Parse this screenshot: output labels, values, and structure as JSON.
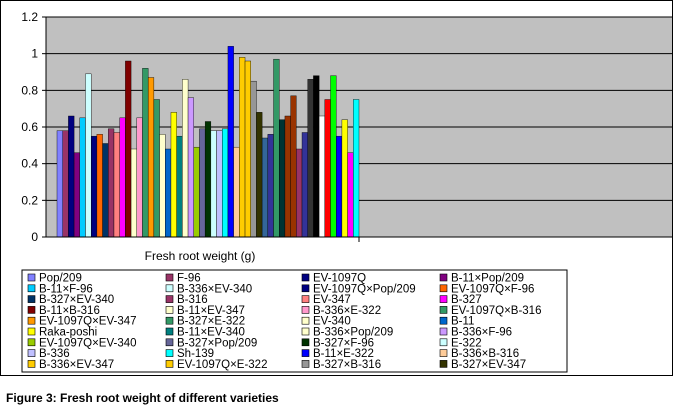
{
  "chart_data": {
    "type": "bar",
    "title": "",
    "xlabel": "Fresh root weight (g)",
    "ylabel": "",
    "ylim": [
      0,
      1.2
    ],
    "yticks": [
      "0",
      "0.2",
      "0.4",
      "0.6",
      "0.8",
      "1",
      "1.2"
    ],
    "grid": true,
    "legend_position": "bottom",
    "series": [
      {
        "name": "Pop/209",
        "color": "#8080ff",
        "value": 0.58
      },
      {
        "name": "F-96",
        "color": "#993366",
        "value": 0.58
      },
      {
        "name": "EV-1097Q",
        "color": "#000080",
        "value": 0.66
      },
      {
        "name": "B-11×Pop/209",
        "color": "#800080",
        "value": 0.46
      },
      {
        "name": "B-11×F-96",
        "color": "#00ccff",
        "value": 0.65
      },
      {
        "name": "B-336×EV-340",
        "color": "#ccffff",
        "value": 0.89
      },
      {
        "name": "EV-1097Q×Pop/209",
        "color": "#000080",
        "value": 0.55
      },
      {
        "name": "EV-1097Q×F-96",
        "color": "#ff6600",
        "value": 0.56
      },
      {
        "name": "B-327×EV-340",
        "color": "#003366",
        "value": 0.51
      },
      {
        "name": "B-316",
        "color": "#993366",
        "value": 0.59
      },
      {
        "name": "EV-347",
        "color": "#ff8080",
        "value": 0.57
      },
      {
        "name": "B-327",
        "color": "#ff00ff",
        "value": 0.65
      },
      {
        "name": "B-11×B-316",
        "color": "#800000",
        "value": 0.96
      },
      {
        "name": "B-11×EV-347",
        "color": "#ffffcc",
        "value": 0.48
      },
      {
        "name": "B-336×E-322",
        "color": "#ff99cc",
        "value": 0.65
      },
      {
        "name": "EV-1097Q×B-316",
        "color": "#339966",
        "value": 0.92
      },
      {
        "name": "EV-1097Q×EV-347",
        "color": "#ff9900",
        "value": 0.87
      },
      {
        "name": "B-327×E-322",
        "color": "#339966",
        "value": 0.75
      },
      {
        "name": "EV-340",
        "color": "#ffffcc",
        "value": 0.56
      },
      {
        "name": "B-11",
        "color": "#0066cc",
        "value": 0.48
      },
      {
        "name": "Raka-poshi",
        "color": "#ffff00",
        "value": 0.68
      },
      {
        "name": "B-11×EV-340",
        "color": "#008080",
        "value": 0.55
      },
      {
        "name": "B-336×Pop/209",
        "color": "#ffffcc",
        "value": 0.86
      },
      {
        "name": "B-336×F-96",
        "color": "#cc99ff",
        "value": 0.76
      },
      {
        "name": "EV-1097Q×EV-340",
        "color": "#99cc00",
        "value": 0.49
      },
      {
        "name": "B-327×Pop/209",
        "color": "#666699",
        "value": 0.59
      },
      {
        "name": "B-327×F-96",
        "color": "#003300",
        "value": 0.63
      },
      {
        "name": "E-322",
        "color": "#ccffff",
        "value": 0.58
      },
      {
        "name": "B-336",
        "color": "#c0c0ff",
        "value": 0.58
      },
      {
        "name": "Sh-139",
        "color": "#00ffff",
        "value": 0.59
      },
      {
        "name": "B-11×E-322",
        "color": "#0000ff",
        "value": 1.04
      },
      {
        "name": "B-336×B-316",
        "color": "#ffcc99",
        "value": 0.49
      },
      {
        "name": "B-336×EV-347",
        "color": "#ffcc00",
        "value": 0.98
      },
      {
        "name": "EV-1097Q×E-322",
        "color": "#ffcc00",
        "value": 0.96
      },
      {
        "name": "B-327×B-316",
        "color": "#969696",
        "value": 0.85
      },
      {
        "name": "B-327×EV-347",
        "color": "#333300",
        "value": 0.68
      }
    ]
  },
  "extra_bars": [
    {
      "color": "#336699",
      "value": 0.54
    },
    {
      "color": "#333399",
      "value": 0.56
    },
    {
      "color": "#339966",
      "value": 0.97
    },
    {
      "color": "#003333",
      "value": 0.64
    },
    {
      "color": "#993300",
      "value": 0.66
    },
    {
      "color": "#993300",
      "value": 0.77
    },
    {
      "color": "#993366",
      "value": 0.48
    },
    {
      "color": "#333399",
      "value": 0.57
    },
    {
      "color": "#333333",
      "value": 0.86
    },
    {
      "color": "#000000",
      "value": 0.88
    },
    {
      "color": "#ffffff",
      "value": 0.66
    },
    {
      "color": "#ff0000",
      "value": 0.75
    },
    {
      "color": "#00ff00",
      "value": 0.88
    },
    {
      "color": "#0000ff",
      "value": 0.55
    },
    {
      "color": "#ffff00",
      "value": 0.64
    },
    {
      "color": "#ff00ff",
      "value": 0.46
    },
    {
      "color": "#00ffff",
      "value": 0.75
    }
  ],
  "caption": "Figure 3: Fresh root weight of different varieties"
}
